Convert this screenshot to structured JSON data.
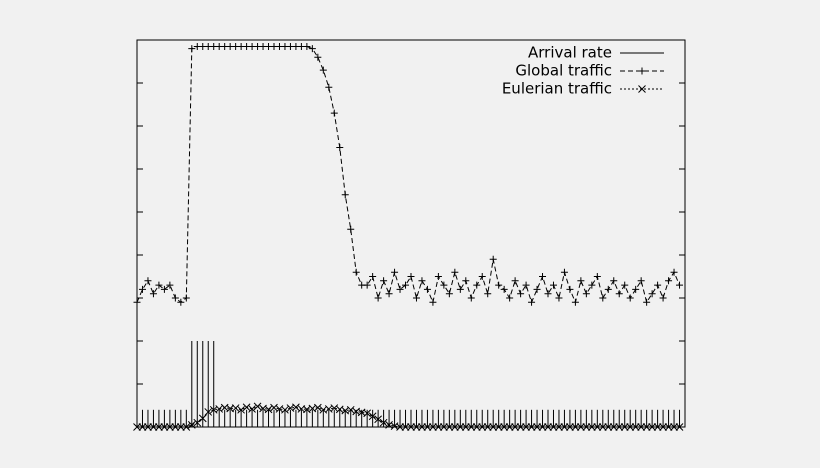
{
  "chart_data": {
    "type": "line",
    "x": [
      0,
      2,
      4,
      6,
      8,
      10,
      12,
      14,
      16,
      18,
      20,
      22,
      24,
      26,
      28,
      30,
      32,
      34,
      36,
      38,
      40,
      42,
      44,
      46,
      48,
      50,
      52,
      54,
      56,
      58,
      60,
      62,
      64,
      66,
      68,
      70,
      72,
      74,
      76,
      78,
      80,
      82,
      84,
      86,
      88,
      90,
      92,
      94,
      96,
      98,
      100,
      102,
      104,
      106,
      108,
      110,
      112,
      114,
      116,
      118,
      120,
      122,
      124,
      126,
      128,
      130,
      132,
      134,
      136,
      138,
      140,
      142,
      144,
      146,
      148,
      150,
      152,
      154,
      156,
      158,
      160,
      162,
      164,
      166,
      168,
      170,
      172,
      174,
      176,
      178,
      180,
      182,
      184,
      186,
      188,
      190,
      192,
      194,
      196,
      198
    ],
    "xlim": [
      0,
      200
    ],
    "ylim": [
      0,
      9
    ],
    "yticks": [
      0,
      1,
      2,
      3,
      4,
      5,
      6,
      7,
      8,
      9
    ],
    "legend": "top-right",
    "series": [
      {
        "name": "Arrival rate",
        "color": "#000000",
        "style": "impulses",
        "dash": "none",
        "marker": "none",
        "values": [
          0.4,
          0.4,
          0.4,
          0.4,
          0.4,
          0.4,
          0.4,
          0.4,
          0.4,
          0.4,
          2.0,
          2.0,
          2.0,
          2.0,
          2.0,
          0.4,
          0.4,
          0.4,
          0.4,
          0.4,
          0.4,
          0.4,
          0.4,
          0.4,
          0.4,
          0.4,
          0.4,
          0.4,
          0.4,
          0.4,
          0.4,
          0.4,
          0.4,
          0.4,
          0.4,
          0.4,
          0.4,
          0.4,
          0.4,
          0.4,
          0.4,
          0.4,
          0.4,
          0.4,
          0.4,
          0.4,
          0.4,
          0.4,
          0.4,
          0.4,
          0.4,
          0.4,
          0.4,
          0.4,
          0.4,
          0.4,
          0.4,
          0.4,
          0.4,
          0.4,
          0.4,
          0.4,
          0.4,
          0.4,
          0.4,
          0.4,
          0.4,
          0.4,
          0.4,
          0.4,
          0.4,
          0.4,
          0.4,
          0.4,
          0.4,
          0.4,
          0.4,
          0.4,
          0.4,
          0.4,
          0.4,
          0.4,
          0.4,
          0.4,
          0.4,
          0.4,
          0.4,
          0.4,
          0.4,
          0.4,
          0.4,
          0.4,
          0.4,
          0.4,
          0.4,
          0.4,
          0.4,
          0.4,
          0.4,
          0.4
        ]
      },
      {
        "name": "Global traffic",
        "color": "#000000",
        "style": "linespoints",
        "dash": "5,3",
        "marker": "plus",
        "values": [
          2.9,
          3.2,
          3.4,
          3.1,
          3.3,
          3.2,
          3.3,
          3.0,
          2.9,
          3.0,
          8.8,
          8.85,
          8.85,
          8.85,
          8.85,
          8.85,
          8.85,
          8.85,
          8.85,
          8.85,
          8.85,
          8.85,
          8.85,
          8.85,
          8.85,
          8.85,
          8.85,
          8.85,
          8.85,
          8.85,
          8.85,
          8.85,
          8.8,
          8.6,
          8.3,
          7.9,
          7.3,
          6.5,
          5.4,
          4.6,
          3.6,
          3.3,
          3.3,
          3.5,
          3.0,
          3.4,
          3.1,
          3.6,
          3.2,
          3.3,
          3.5,
          3.0,
          3.4,
          3.2,
          2.9,
          3.5,
          3.3,
          3.1,
          3.6,
          3.2,
          3.4,
          3.0,
          3.3,
          3.5,
          3.1,
          3.9,
          3.3,
          3.2,
          3.0,
          3.4,
          3.1,
          3.3,
          2.9,
          3.2,
          3.5,
          3.1,
          3.3,
          3.0,
          3.6,
          3.2,
          2.9,
          3.4,
          3.1,
          3.3,
          3.5,
          3.0,
          3.2,
          3.4,
          3.1,
          3.3,
          3.0,
          3.2,
          3.4,
          2.9,
          3.1,
          3.3,
          3.0,
          3.4,
          3.6,
          3.3
        ]
      },
      {
        "name": "Eulerian traffic",
        "color": "#000000",
        "style": "linespoints",
        "dash": "2,2",
        "marker": "cross",
        "values": [
          0,
          0,
          0,
          0,
          0,
          0,
          0,
          0,
          0,
          0,
          0.05,
          0.1,
          0.2,
          0.35,
          0.4,
          0.42,
          0.45,
          0.43,
          0.44,
          0.4,
          0.46,
          0.42,
          0.48,
          0.43,
          0.41,
          0.45,
          0.42,
          0.4,
          0.44,
          0.46,
          0.42,
          0.41,
          0.43,
          0.45,
          0.4,
          0.42,
          0.44,
          0.41,
          0.38,
          0.4,
          0.36,
          0.34,
          0.32,
          0.25,
          0.18,
          0.1,
          0.05,
          0.02,
          0,
          0,
          0,
          0,
          0,
          0,
          0,
          0,
          0,
          0,
          0,
          0,
          0,
          0,
          0,
          0,
          0,
          0,
          0,
          0,
          0,
          0,
          0,
          0,
          0,
          0,
          0,
          0,
          0,
          0,
          0,
          0,
          0,
          0,
          0,
          0,
          0,
          0,
          0,
          0,
          0,
          0,
          0,
          0,
          0,
          0,
          0,
          0,
          0,
          0,
          0,
          0
        ]
      }
    ]
  }
}
